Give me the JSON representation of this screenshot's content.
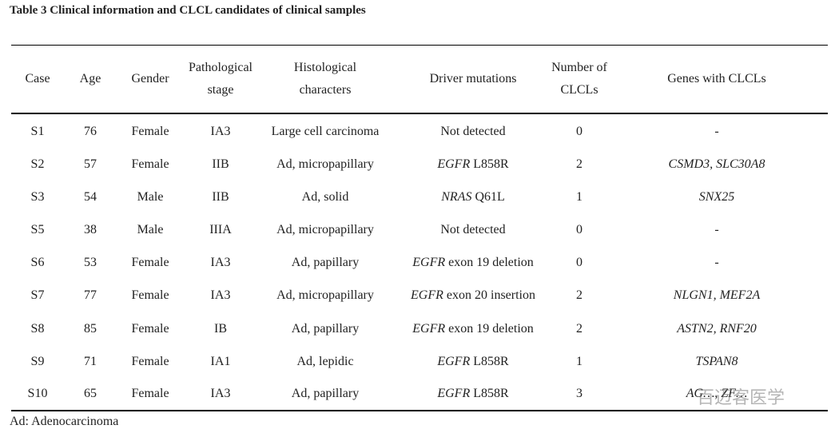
{
  "title": "Table 3 Clinical information and CLCL candidates of clinical samples",
  "table": {
    "header": [
      "Case",
      "Age",
      "Gender",
      "Pathological stage",
      "Histological characters",
      "Driver mutations",
      "Number of CLCLs",
      "Genes with CLCLs"
    ],
    "rows": [
      [
        "S1",
        "76",
        "Female",
        "IA3",
        "Large cell carcinoma",
        {
          "plain": "Not detected"
        },
        "0",
        "-"
      ],
      [
        "S2",
        "57",
        "Female",
        "IIB",
        "Ad, micropapillary",
        {
          "gene": "EGFR",
          "change": "L858R"
        },
        "2",
        "CSMD3, SLC30A8"
      ],
      [
        "S3",
        "54",
        "Male",
        "IIB",
        "Ad, solid",
        {
          "gene": "NRAS",
          "change": "Q61L"
        },
        "1",
        "SNX25"
      ],
      [
        "S5",
        "38",
        "Male",
        "IIIA",
        "Ad, micropapillary",
        {
          "plain": "Not detected"
        },
        "0",
        "-"
      ],
      [
        "S6",
        "53",
        "Female",
        "IA3",
        "Ad, papillary",
        {
          "gene": "EGFR",
          "change": "exon 19 deletion"
        },
        "0",
        "-"
      ],
      [
        "S7",
        "77",
        "Female",
        "IA3",
        "Ad, micropapillary",
        {
          "gene": "EGFR",
          "change": "exon 20 insertion"
        },
        "2",
        "NLGN1, MEF2A"
      ],
      [
        "S8",
        "85",
        "Female",
        "IB",
        "Ad, papillary",
        {
          "gene": "EGFR",
          "change": "exon 19 deletion"
        },
        "2",
        "ASTN2, RNF20"
      ],
      [
        "S9",
        "71",
        "Female",
        "IA1",
        "Ad, lepidic",
        {
          "gene": "EGFR",
          "change": "L858R"
        },
        "1",
        "TSPAN8"
      ],
      [
        "S10",
        "65",
        "Female",
        "IA3",
        "Ad, papillary",
        {
          "gene": "EGFR",
          "change": "L858R"
        },
        "3",
        "AG…, ZF…"
      ]
    ]
  },
  "footnote": "Ad: Adenocarcinoma",
  "watermark": "百迈客医学"
}
